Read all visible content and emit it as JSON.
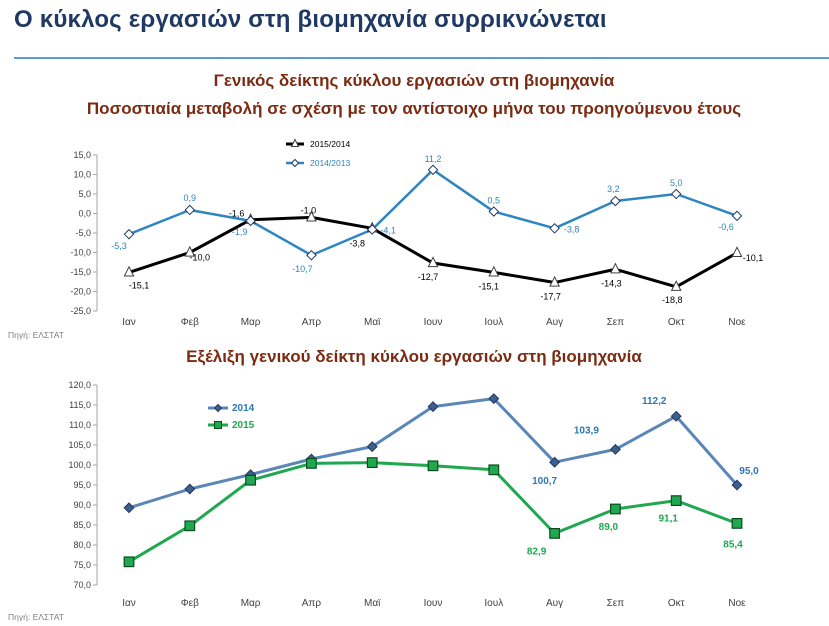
{
  "page": {
    "title": "Ο κύκλος εργασιών στη βιομηχανία συρρικνώνεται"
  },
  "chart_data": [
    {
      "type": "line",
      "title": "Γενικός δείκτης κύκλου εργασιών στη βιομηχανία",
      "subtitle": "Ποσοστιαία μεταβολή σε σχέση με τον αντίστοιχο μήνα του προηγούμενου έτους",
      "categories": [
        "Ιαν",
        "Φεβ",
        "Μαρ",
        "Απρ",
        "Μαϊ",
        "Ιουν",
        "Ιουλ",
        "Αυγ",
        "Σεπ",
        "Οκτ",
        "Νοε"
      ],
      "yticks": [
        "15,0",
        "10,0",
        "5,0",
        "0,0",
        "-5,0",
        "-10,0",
        "-15,0",
        "-20,0",
        "-25,0"
      ],
      "ylim": [
        -25,
        15
      ],
      "legend_position": "top-left",
      "grid": false,
      "source": "Πηγή: ΕΛΣΤΑΤ",
      "series": [
        {
          "name": "2015/2014",
          "color": "#000000",
          "marker": "triangle",
          "values": [
            -15.1,
            -10.0,
            -1.6,
            -1.0,
            -3.8,
            -12.7,
            -15.1,
            -17.7,
            -14.3,
            -18.8,
            -10.1
          ],
          "labels": [
            "-15,1",
            "-10,0",
            "-1,6",
            "-1,0",
            "-3,8",
            "-12,7",
            "-15,1",
            "-17,7",
            "-14,3",
            "-18,8",
            "-10,1"
          ]
        },
        {
          "name": "2014/2013",
          "color": "#2e86c1",
          "marker": "diamond",
          "values": [
            -5.3,
            0.9,
            -1.9,
            -10.7,
            -4.1,
            11.2,
            0.5,
            -3.8,
            3.2,
            5.0,
            -0.6
          ],
          "labels": [
            "-5,3",
            "0,9",
            "-1,9",
            "-10,7",
            "-4,1",
            "11,2",
            "0,5",
            "-3,8",
            "3,2",
            "5,0",
            "-0,6"
          ]
        }
      ]
    },
    {
      "type": "line",
      "title": "Εξέλιξη γενικού δείκτη κύκλου εργασιών στη βιομηχανία",
      "categories": [
        "Ιαν",
        "Φεβ",
        "Μαρ",
        "Απρ",
        "Μαϊ",
        "Ιουν",
        "Ιουλ",
        "Αυγ",
        "Σεπ",
        "Οκτ",
        "Νοε"
      ],
      "yticks": [
        "120,0",
        "115,0",
        "110,0",
        "105,0",
        "100,0",
        "95,0",
        "90,0",
        "85,0",
        "80,0",
        "75,0",
        "70,0"
      ],
      "ylim": [
        70,
        120
      ],
      "legend_position": "top-left",
      "grid": false,
      "source": "Πηγή: ΕΛΣΤΑΤ",
      "series": [
        {
          "name": "2014",
          "color": "#5b86b8",
          "marker": "diamond",
          "values": [
            89.3,
            94.0,
            97.6,
            101.5,
            104.6,
            114.6,
            116.6,
            100.7,
            103.9,
            112.2,
            95.0
          ],
          "labels": [
            "",
            "",
            "",
            "",
            "",
            "",
            "",
            "100,7",
            "103,9",
            "112,2",
            "95,0"
          ]
        },
        {
          "name": "2015",
          "color": "#1fa84f",
          "marker": "square",
          "values": [
            75.8,
            84.8,
            96.2,
            100.4,
            100.6,
            99.8,
            98.8,
            82.9,
            89.0,
            91.1,
            85.4
          ],
          "labels": [
            "",
            "",
            "",
            "",
            "",
            "",
            "",
            "82,9",
            "89,0",
            "91,1",
            "85,4"
          ]
        }
      ]
    }
  ]
}
